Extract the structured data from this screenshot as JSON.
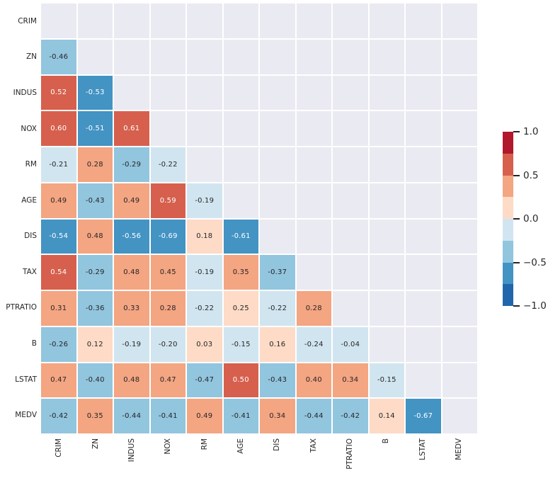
{
  "chart_data": {
    "type": "heatmap",
    "description": "Lower-triangular correlation matrix heatmap with masked diagonal and upper triangle",
    "variables": [
      "CRIM",
      "ZN",
      "INDUS",
      "NOX",
      "RM",
      "AGE",
      "DIS",
      "TAX",
      "PTRATIO",
      "B",
      "LSTAT",
      "MEDV"
    ],
    "matrix_lower_triangle": [
      [],
      [
        -0.46
      ],
      [
        0.52,
        -0.53
      ],
      [
        0.6,
        -0.51,
        0.61
      ],
      [
        -0.21,
        0.28,
        -0.29,
        -0.22
      ],
      [
        0.49,
        -0.43,
        0.49,
        0.59,
        -0.19
      ],
      [
        -0.54,
        0.48,
        -0.56,
        -0.69,
        0.18,
        -0.61
      ],
      [
        0.54,
        -0.29,
        0.48,
        0.45,
        -0.19,
        0.35,
        -0.37
      ],
      [
        0.31,
        -0.36,
        0.33,
        0.28,
        -0.22,
        0.25,
        -0.22,
        0.28
      ],
      [
        -0.26,
        0.12,
        -0.19,
        -0.2,
        0.03,
        -0.15,
        0.16,
        -0.24,
        -0.04
      ],
      [
        0.47,
        -0.4,
        0.48,
        0.47,
        -0.47,
        0.5,
        -0.43,
        0.4,
        0.34,
        -0.15
      ],
      [
        -0.42,
        0.35,
        -0.44,
        -0.41,
        0.49,
        -0.41,
        0.34,
        -0.44,
        -0.42,
        0.14,
        -0.67
      ]
    ],
    "value_format_decimals": 2,
    "vmin": -1.0,
    "vmax": 1.0,
    "grid_on": false,
    "legend_position": "right-colorbar",
    "colorbar": {
      "tick_labels": [
        "1.0",
        "0.5",
        "0.0",
        "−0.5",
        "−1.0"
      ],
      "tick_values": [
        1.0,
        0.5,
        0.0,
        -0.5,
        -1.0
      ],
      "palette_top_to_bottom": [
        "#b2182b",
        "#d6604d",
        "#f4a582",
        "#fddbc7",
        "#d1e5f0",
        "#92c5de",
        "#4393c3",
        "#2166ac"
      ]
    },
    "colors": {
      "masked_cell": "#eaeaf2",
      "grid_line": "#ffffff",
      "annot_dark": "#262626",
      "annot_light": "#ffffff",
      "tick_color": "#262626",
      "figure_bg": "#ffffff"
    },
    "title": "",
    "xlabel": "",
    "ylabel": ""
  }
}
